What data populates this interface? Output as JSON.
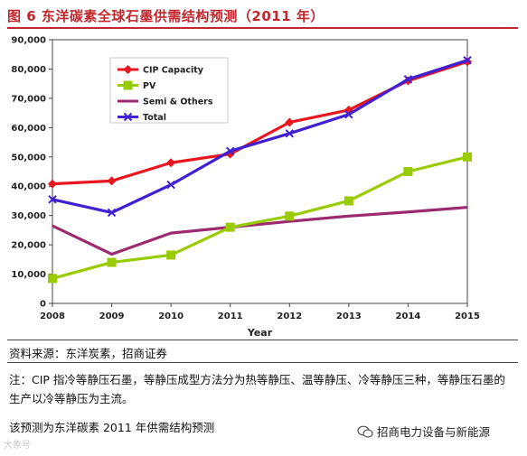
{
  "header": {
    "title": "图 6  东洋碳素全球石墨供需结构预测（2011 年）"
  },
  "chart_data": {
    "type": "line",
    "x": [
      2008,
      2009,
      2010,
      2011,
      2012,
      2013,
      2014,
      2015
    ],
    "xlabel": "Year",
    "ylabel": "",
    "ylim": [
      0,
      90000
    ],
    "yticks": [
      0,
      10000,
      20000,
      30000,
      40000,
      50000,
      60000,
      70000,
      80000,
      90000
    ],
    "ytick_labels": [
      "0",
      "10,000",
      "20,000",
      "30,000",
      "40,000",
      "50,000",
      "60,000",
      "70,000",
      "80,000",
      "90,000"
    ],
    "grid": false,
    "legend_position": "top-left",
    "series": [
      {
        "name": "CIP Capacity",
        "color": "#e8161f",
        "marker": "diamond",
        "values": [
          40800,
          41800,
          48000,
          51000,
          61800,
          66000,
          76000,
          82500
        ]
      },
      {
        "name": "PV",
        "color": "#99cc00",
        "marker": "square",
        "values": [
          8500,
          14000,
          16500,
          26000,
          29800,
          35000,
          45000,
          50000
        ]
      },
      {
        "name": "Semi & Others",
        "color": "#9b2a6e",
        "marker": "none",
        "values": [
          26500,
          16800,
          24000,
          26000,
          28000,
          29800,
          31200,
          32800
        ]
      },
      {
        "name": "Total",
        "color": "#4020d0",
        "marker": "x",
        "values": [
          35500,
          31000,
          40500,
          52000,
          58000,
          64500,
          76500,
          83000
        ]
      }
    ]
  },
  "footer": {
    "source": "资料来源：东洋炭素，招商证券",
    "note": "注：CIP 指冷等静压石墨，等静压成型方法分为热等静压、温等静压、冷等静压三种，等静压石墨的生产以冷等静压为主流。",
    "forecast": "该预测为东洋碳素 2011 年供需结构预测",
    "watermark_left": "大象号",
    "watermark_right": "招商电力设备与新能源",
    "watermark_icon": "wechat-icon"
  }
}
